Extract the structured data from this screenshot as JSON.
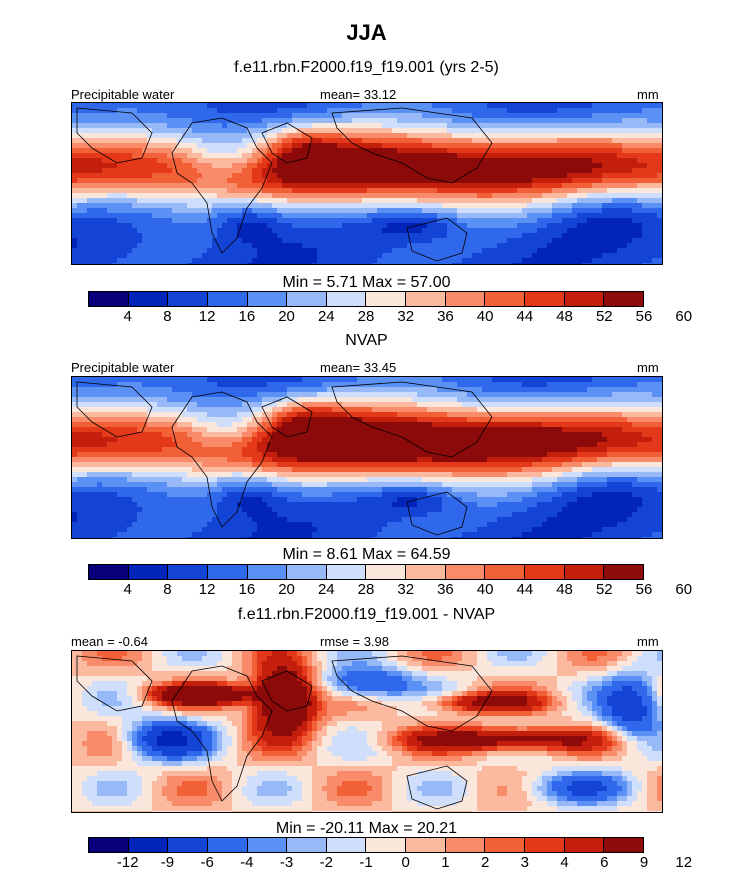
{
  "figure": {
    "title": "JJA",
    "colors": {
      "palette_12": [
        "#08007b",
        "#0224b8",
        "#1444d6",
        "#2f68ea",
        "#5b90f4",
        "#98b9f8",
        "#cfdffb",
        "#fbe6dc",
        "#fbb9a0",
        "#f88c6a",
        "#f26038",
        "#e4381a",
        "#c41e0c",
        "#8c0a0a"
      ],
      "land_outline": "#000000"
    }
  },
  "panels": [
    {
      "subtitle": "f.e11.rbn.F2000.f19_f19.001 (yrs 2-5)",
      "left_label": "Precipitable water",
      "center_label": "mean=  33.12",
      "right_label": "mm",
      "minmax": "Min =   5.71 Max =  57.00",
      "kind": "pw",
      "colorbar_ticks": [
        "4",
        "8",
        "12",
        "16",
        "20",
        "24",
        "28",
        "32",
        "36",
        "40",
        "44",
        "48",
        "52",
        "56",
        "60"
      ]
    },
    {
      "subtitle": "NVAP",
      "left_label": "Precipitable water",
      "center_label": "mean=  33.45",
      "right_label": "mm",
      "minmax": "Min =   8.61 Max =  64.59",
      "kind": "pw2",
      "colorbar_ticks": [
        "4",
        "8",
        "12",
        "16",
        "20",
        "24",
        "28",
        "32",
        "36",
        "40",
        "44",
        "48",
        "52",
        "56",
        "60"
      ]
    },
    {
      "subtitle": "f.e11.rbn.F2000.f19_f19.001 - NVAP",
      "left_label": "mean =  -0.64",
      "center_label": "rmse =   3.98",
      "right_label": "mm",
      "minmax": "Min = -20.11 Max =  20.21",
      "kind": "diff",
      "colorbar_ticks": [
        "-12",
        "-9",
        "-6",
        "-4",
        "-3",
        "-2",
        "-1",
        "0",
        "1",
        "2",
        "3",
        "4",
        "6",
        "9",
        "12"
      ]
    }
  ],
  "chart_data": [
    {
      "type": "heatmap",
      "title": "f.e11.rbn.F2000.f19_f19.001 (yrs 2-5)",
      "variable": "Precipitable water",
      "units": "mm",
      "mean": 33.12,
      "min": 5.71,
      "max": 57.0,
      "contour_levels": [
        4,
        8,
        12,
        16,
        20,
        24,
        28,
        32,
        36,
        40,
        44,
        48,
        52,
        56,
        60
      ]
    },
    {
      "type": "heatmap",
      "title": "NVAP",
      "variable": "Precipitable water",
      "units": "mm",
      "mean": 33.45,
      "min": 8.61,
      "max": 64.59,
      "contour_levels": [
        4,
        8,
        12,
        16,
        20,
        24,
        28,
        32,
        36,
        40,
        44,
        48,
        52,
        56,
        60
      ]
    },
    {
      "type": "heatmap",
      "title": "f.e11.rbn.F2000.f19_f19.001 - NVAP",
      "units": "mm",
      "mean": -0.64,
      "rmse": 3.98,
      "min": -20.11,
      "max": 20.21,
      "contour_levels": [
        -12,
        -9,
        -6,
        -4,
        -3,
        -2,
        -1,
        0,
        1,
        2,
        3,
        4,
        6,
        9,
        12
      ]
    }
  ]
}
